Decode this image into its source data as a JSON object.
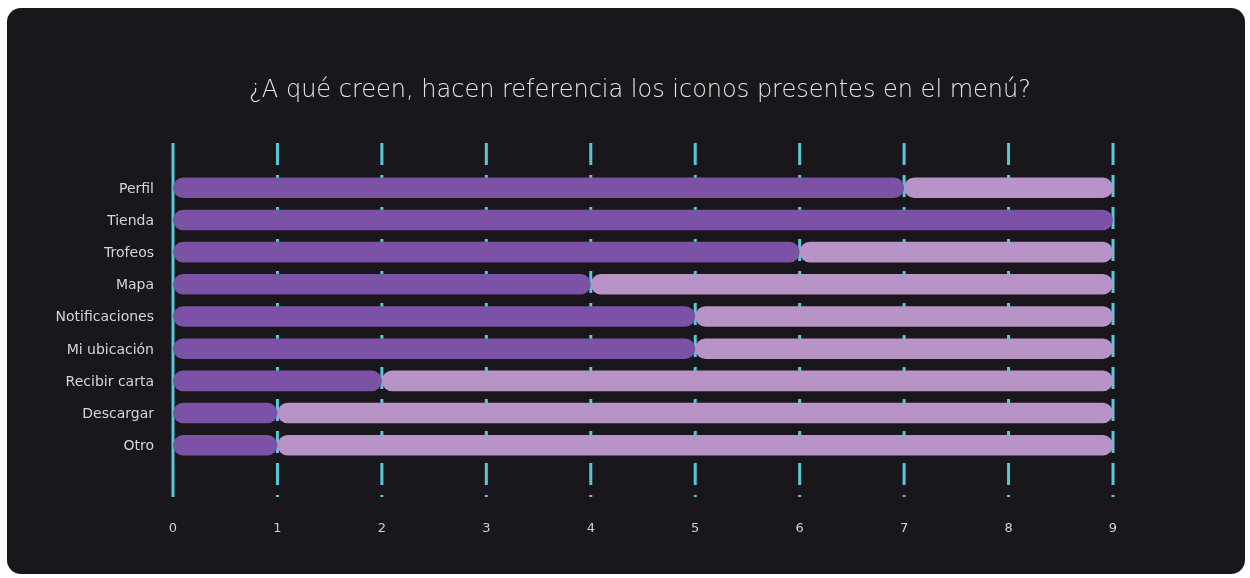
{
  "chart_data": {
    "type": "bar",
    "orientation": "horizontal",
    "stacked": true,
    "title": "¿A qué creen, hacen referencia los iconos presentes en el menú?",
    "categories": [
      "Perfil",
      "Tienda",
      "Trofeos",
      "Mapa",
      "Notificaciones",
      "Mi ubicación",
      "Recibir carta",
      "Descargar",
      "Otro"
    ],
    "series": [
      {
        "color": "#7b52a6",
        "values": [
          7,
          9,
          6,
          4,
          5,
          5,
          2,
          1,
          1
        ]
      },
      {
        "color": "#b793c8",
        "values": [
          2,
          0,
          3,
          5,
          4,
          4,
          7,
          8,
          8
        ]
      }
    ],
    "xlim": [
      0,
      9
    ],
    "xticks": [
      0,
      1,
      2,
      3,
      4,
      5,
      6,
      7,
      8,
      9
    ],
    "grid": "x"
  }
}
